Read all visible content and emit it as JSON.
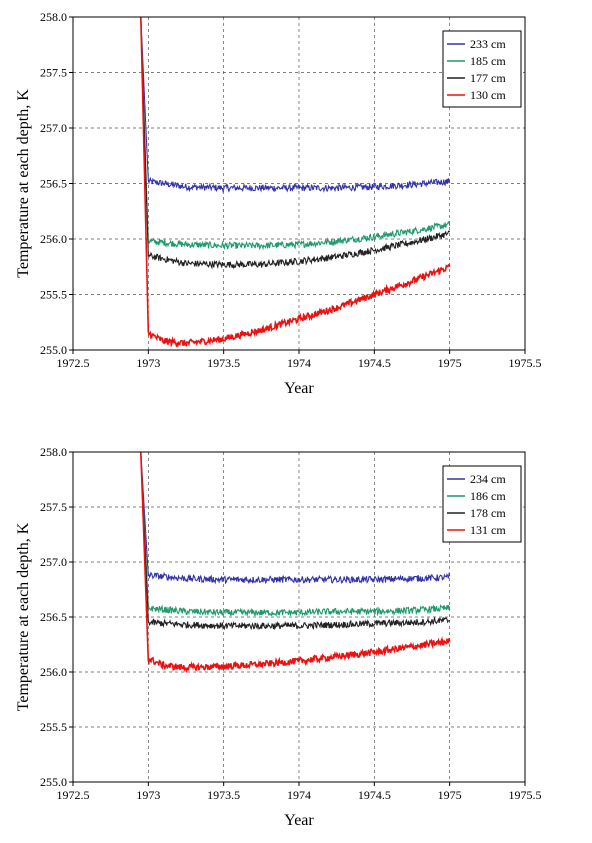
{
  "chart_data": [
    {
      "type": "line",
      "xlabel": "Year",
      "ylabel": "Temperature at each depth, K",
      "xlim": [
        1972.5,
        1975.5
      ],
      "ylim": [
        255.0,
        258.0
      ],
      "x_ticks": [
        "1972.5",
        "1973",
        "1973.5",
        "1974",
        "1974.5",
        "1975",
        "1975.5"
      ],
      "y_ticks": [
        "255.0",
        "255.5",
        "256.0",
        "256.5",
        "257.0",
        "257.5",
        "258.0"
      ],
      "grid": true,
      "legend_position": "top-right",
      "series": [
        {
          "name": "233 cm",
          "color": "#3333aa",
          "start": 1972.95,
          "initial": 258.0,
          "x": [
            1973.0,
            1973.25,
            1973.5,
            1973.75,
            1974.0,
            1974.25,
            1974.5,
            1974.75,
            1975.0
          ],
          "y": [
            256.52,
            256.47,
            256.46,
            256.46,
            256.46,
            256.46,
            256.47,
            256.49,
            256.52
          ]
        },
        {
          "name": "185 cm",
          "color": "#1f9a6a",
          "start": 1972.95,
          "initial": 258.0,
          "x": [
            1973.0,
            1973.25,
            1973.5,
            1973.75,
            1974.0,
            1974.25,
            1974.5,
            1974.75,
            1975.0
          ],
          "y": [
            255.98,
            255.95,
            255.94,
            255.94,
            255.95,
            255.98,
            256.02,
            256.07,
            256.13
          ]
        },
        {
          "name": "177 cm",
          "color": "#222222",
          "start": 1972.95,
          "initial": 258.0,
          "x": [
            1973.0,
            1973.25,
            1973.5,
            1973.75,
            1974.0,
            1974.25,
            1974.5,
            1974.75,
            1975.0
          ],
          "y": [
            255.85,
            255.78,
            255.77,
            255.77,
            255.8,
            255.84,
            255.9,
            255.97,
            256.05
          ]
        },
        {
          "name": "130 cm",
          "color": "#ee1111",
          "start": 1972.95,
          "initial": 258.0,
          "x": [
            1973.0,
            1973.1,
            1973.25,
            1973.5,
            1973.75,
            1974.0,
            1974.25,
            1974.5,
            1974.75,
            1975.0
          ],
          "y": [
            255.15,
            255.08,
            255.06,
            255.1,
            255.18,
            255.28,
            255.38,
            255.5,
            255.62,
            255.75
          ]
        }
      ]
    },
    {
      "type": "line",
      "xlabel": "Year",
      "ylabel": "Temperature at each depth, K",
      "xlim": [
        1972.5,
        1975.5
      ],
      "ylim": [
        255.0,
        258.0
      ],
      "x_ticks": [
        "1972.5",
        "1973",
        "1973.5",
        "1974",
        "1974.5",
        "1975",
        "1975.5"
      ],
      "y_ticks": [
        "255.0",
        "255.5",
        "256.0",
        "256.5",
        "257.0",
        "257.5",
        "258.0"
      ],
      "grid": true,
      "legend_position": "top-right",
      "series": [
        {
          "name": "234 cm",
          "color": "#3333aa",
          "start": 1972.95,
          "initial": 258.0,
          "x": [
            1973.0,
            1973.25,
            1973.5,
            1973.75,
            1974.0,
            1974.25,
            1974.5,
            1974.75,
            1975.0
          ],
          "y": [
            256.88,
            256.85,
            256.84,
            256.84,
            256.84,
            256.84,
            256.84,
            256.85,
            256.86
          ]
        },
        {
          "name": "186 cm",
          "color": "#1f9a6a",
          "start": 1972.95,
          "initial": 258.0,
          "x": [
            1973.0,
            1973.25,
            1973.5,
            1973.75,
            1974.0,
            1974.25,
            1974.5,
            1974.75,
            1975.0
          ],
          "y": [
            256.58,
            256.55,
            256.54,
            256.54,
            256.54,
            256.55,
            256.55,
            256.56,
            256.58
          ]
        },
        {
          "name": "178 cm",
          "color": "#222222",
          "start": 1972.95,
          "initial": 258.0,
          "x": [
            1973.0,
            1973.25,
            1973.5,
            1973.75,
            1974.0,
            1974.25,
            1974.5,
            1974.75,
            1975.0
          ],
          "y": [
            256.45,
            256.43,
            256.42,
            256.42,
            256.42,
            256.43,
            256.44,
            256.45,
            256.47
          ]
        },
        {
          "name": "131 cm",
          "color": "#ee1111",
          "start": 1972.95,
          "initial": 258.0,
          "x": [
            1973.0,
            1973.1,
            1973.25,
            1973.5,
            1973.75,
            1974.0,
            1974.25,
            1974.5,
            1974.75,
            1975.0
          ],
          "y": [
            256.12,
            256.06,
            256.04,
            256.05,
            256.07,
            256.1,
            256.14,
            256.18,
            256.23,
            256.28
          ]
        }
      ]
    }
  ]
}
